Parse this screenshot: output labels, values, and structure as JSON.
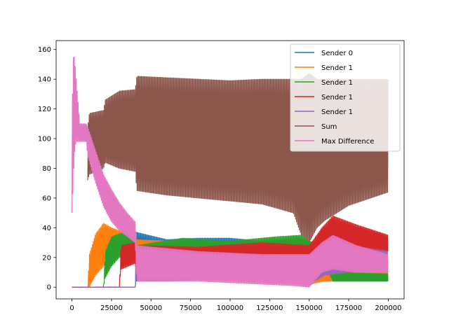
{
  "chart_data": {
    "type": "line",
    "title": "",
    "xlabel": "",
    "ylabel": "",
    "xlim": [
      -10000,
      210000
    ],
    "ylim": [
      -7.9,
      166
    ],
    "x_ticks": [
      0,
      25000,
      50000,
      75000,
      100000,
      125000,
      150000,
      175000,
      200000
    ],
    "y_ticks": [
      0,
      20,
      40,
      60,
      80,
      100,
      120,
      140,
      160
    ],
    "grid": false,
    "legend_position": "upper right",
    "colors": {
      "sender0": "#1f77b4",
      "sender1a": "#ff7f0e",
      "sender1b": "#2ca02c",
      "sender1c": "#d62728",
      "sender1d": "#9467bd",
      "sum": "#8c564b",
      "maxdiff": "#e377c2"
    },
    "series": [
      {
        "name": "Sender 0",
        "key": "sender0",
        "band": [
          [
            0,
            0,
            0
          ],
          [
            40000,
            0,
            0
          ],
          [
            40500,
            4,
            37
          ],
          [
            60000,
            4,
            32
          ],
          [
            80000,
            5,
            33
          ],
          [
            100000,
            5,
            33
          ],
          [
            120000,
            5,
            31
          ],
          [
            140000,
            3,
            32
          ],
          [
            150000,
            1,
            28
          ],
          [
            155000,
            4,
            22
          ],
          [
            170000,
            4,
            16
          ],
          [
            200000,
            4,
            11
          ]
        ]
      },
      {
        "name": "Sender 1",
        "key": "sender1a",
        "band": [
          [
            0,
            0,
            0
          ],
          [
            10000,
            0,
            0
          ],
          [
            11000,
            0,
            22
          ],
          [
            15000,
            8,
            36
          ],
          [
            20000,
            14,
            43
          ],
          [
            25000,
            24,
            40
          ],
          [
            30000,
            26,
            38
          ],
          [
            40000,
            28,
            36
          ],
          [
            41000,
            4,
            32
          ],
          [
            80000,
            6,
            30
          ],
          [
            120000,
            3,
            30
          ],
          [
            150000,
            2,
            30
          ],
          [
            160000,
            4,
            16
          ],
          [
            200000,
            5,
            12
          ]
        ]
      },
      {
        "name": "Sender 1",
        "key": "sender1b",
        "band": [
          [
            0,
            0,
            0
          ],
          [
            20000,
            0,
            0
          ],
          [
            21000,
            6,
            24
          ],
          [
            25000,
            14,
            34
          ],
          [
            30000,
            20,
            36
          ],
          [
            40000,
            22,
            38
          ],
          [
            41000,
            8,
            28
          ],
          [
            70000,
            10,
            33
          ],
          [
            100000,
            8,
            31
          ],
          [
            130000,
            10,
            34
          ],
          [
            145000,
            12,
            35
          ],
          [
            150000,
            20,
            31
          ],
          [
            160000,
            14,
            28
          ],
          [
            165000,
            4,
            10
          ],
          [
            200000,
            4,
            9
          ]
        ]
      },
      {
        "name": "Sender 1",
        "key": "sender1c",
        "band": [
          [
            0,
            0,
            0
          ],
          [
            30000,
            0,
            0
          ],
          [
            31000,
            12,
            28
          ],
          [
            40000,
            16,
            30
          ],
          [
            41000,
            6,
            28
          ],
          [
            80000,
            8,
            27
          ],
          [
            120000,
            10,
            30
          ],
          [
            150000,
            8,
            28
          ],
          [
            158000,
            22,
            40
          ],
          [
            165000,
            26,
            48
          ],
          [
            180000,
            26,
            42
          ],
          [
            200000,
            24,
            35
          ]
        ]
      },
      {
        "name": "Sender 1",
        "key": "sender1d",
        "band": [
          [
            0,
            0,
            0
          ],
          [
            40000,
            0,
            0
          ],
          [
            40500,
            5,
            25
          ],
          [
            80000,
            5,
            22
          ],
          [
            120000,
            4,
            22
          ],
          [
            150000,
            2,
            22
          ],
          [
            160000,
            8,
            22
          ],
          [
            175000,
            10,
            28
          ],
          [
            200000,
            12,
            24
          ]
        ]
      },
      {
        "name": "Sum",
        "key": "sum",
        "band": [
          [
            10000,
            72,
            108
          ],
          [
            11000,
            76,
            117
          ],
          [
            20000,
            80,
            119
          ],
          [
            21000,
            84,
            126
          ],
          [
            30000,
            80,
            132
          ],
          [
            40000,
            78,
            133
          ],
          [
            41000,
            65,
            142
          ],
          [
            60000,
            62,
            141
          ],
          [
            80000,
            60,
            140
          ],
          [
            100000,
            58,
            139
          ],
          [
            120000,
            56,
            140
          ],
          [
            140000,
            50,
            140
          ],
          [
            145000,
            35,
            140
          ],
          [
            150000,
            30,
            144
          ],
          [
            155000,
            40,
            140
          ],
          [
            160000,
            45,
            140
          ],
          [
            175000,
            55,
            140
          ],
          [
            200000,
            64,
            140
          ]
        ]
      },
      {
        "name": "Max Difference",
        "key": "maxdiff",
        "band": [
          [
            0,
            50,
            100
          ],
          [
            500,
            60,
            150
          ],
          [
            1200,
            80,
            158
          ],
          [
            2000,
            95,
            150
          ],
          [
            3000,
            98,
            136
          ],
          [
            5000,
            98,
            110
          ],
          [
            9000,
            98,
            110
          ],
          [
            10000,
            88,
            108
          ],
          [
            15000,
            70,
            92
          ],
          [
            20000,
            54,
            76
          ],
          [
            25000,
            44,
            66
          ],
          [
            30000,
            38,
            57
          ],
          [
            35000,
            34,
            50
          ],
          [
            40000,
            30,
            44
          ],
          [
            41000,
            4,
            28
          ],
          [
            80000,
            4,
            24
          ],
          [
            120000,
            2,
            22
          ],
          [
            140000,
            1,
            22
          ],
          [
            150000,
            0,
            22
          ],
          [
            158000,
            10,
            30
          ],
          [
            165000,
            12,
            35
          ],
          [
            180000,
            10,
            28
          ],
          [
            200000,
            10,
            22
          ]
        ]
      }
    ]
  }
}
